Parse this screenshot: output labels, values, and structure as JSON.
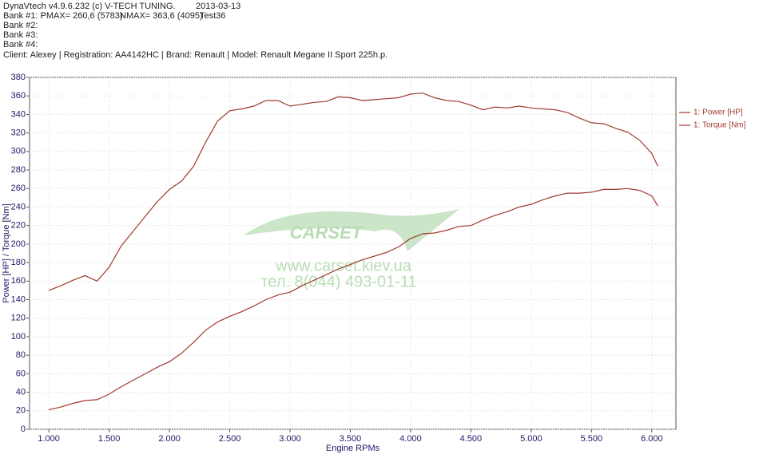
{
  "chart_data": {
    "type": "line",
    "header": [
      {
        "text": "DynaVtech v4.9.6.232 (c) V-TECH TUNING."
      },
      {
        "text": "2013-03-13"
      },
      {
        "text": "Bank #1:  PMAX= 260,6 (5783)"
      },
      {
        "text": "NMAX= 363,6 (4095)"
      },
      {
        "text": "Test36"
      },
      {
        "text": "Bank #2:"
      },
      {
        "text": "Bank #3:"
      },
      {
        "text": "Bank #4:"
      },
      {
        "text": "Client: Alexey | Registration: AA4142HC | Brand: Renault | Model: Renault Megane II Sport 225h.p."
      }
    ],
    "watermark": [
      "CARSET",
      "www.carset.kiev.ua",
      "тел. 8(044) 493-01-11"
    ],
    "xlabel": "Engine RPMs",
    "ylabel": "Power [HP] / Torque [Nm]",
    "x": [
      1000,
      1100,
      1200,
      1300,
      1400,
      1500,
      1600,
      1700,
      1800,
      1900,
      2000,
      2100,
      2200,
      2300,
      2400,
      2500,
      2600,
      2700,
      2800,
      2900,
      3000,
      3100,
      3200,
      3300,
      3400,
      3500,
      3600,
      3700,
      3800,
      3900,
      4000,
      4100,
      4200,
      4300,
      4400,
      4500,
      4600,
      4700,
      4800,
      4900,
      5000,
      5100,
      5200,
      5300,
      5400,
      5500,
      5600,
      5700,
      5800,
      5900,
      6000,
      6050
    ],
    "series": [
      {
        "name": "1: Power [HP]",
        "color": "#a03a2e",
        "values": [
          21,
          24,
          28,
          31,
          32,
          38,
          46,
          53,
          60,
          67,
          73,
          82,
          94,
          107,
          116,
          122,
          127,
          133,
          140,
          145,
          148,
          155,
          161,
          167,
          173,
          178,
          183,
          187,
          191,
          197,
          206,
          211,
          212,
          215,
          219,
          220,
          226,
          231,
          235,
          240,
          243,
          248,
          252,
          255,
          255,
          256,
          259,
          259,
          260,
          258,
          252,
          241
        ]
      },
      {
        "name": "1: Torque [Nm]",
        "color": "#a03a2e",
        "values": [
          150,
          155,
          161,
          166,
          160,
          175,
          198,
          214,
          230,
          246,
          259,
          268,
          284,
          310,
          333,
          344,
          346,
          349,
          355,
          355,
          349,
          351,
          353,
          354,
          359,
          358,
          355,
          356,
          357,
          358,
          362,
          363,
          358,
          355,
          354,
          350,
          345,
          348,
          347,
          349,
          347,
          346,
          345,
          342,
          336,
          331,
          330,
          325,
          321,
          312,
          298,
          284
        ]
      }
    ],
    "xlim": [
      840,
      6200
    ],
    "ylim": [
      0,
      380
    ],
    "xticks": [
      {
        "value": 1000,
        "label": "1.000"
      },
      {
        "value": 1500,
        "label": "1.500"
      },
      {
        "value": 2000,
        "label": "2.000"
      },
      {
        "value": 2500,
        "label": "2.500"
      },
      {
        "value": 3000,
        "label": "3.000"
      },
      {
        "value": 3500,
        "label": "3.500"
      },
      {
        "value": 4000,
        "label": "4.000"
      },
      {
        "value": 4500,
        "label": "4.500"
      },
      {
        "value": 5000,
        "label": "5.000"
      },
      {
        "value": 5500,
        "label": "5.500"
      },
      {
        "value": 6000,
        "label": "6.000"
      }
    ],
    "yticks": [
      0,
      20,
      40,
      60,
      80,
      100,
      120,
      140,
      160,
      180,
      200,
      220,
      240,
      260,
      280,
      300,
      320,
      340,
      360,
      380
    ],
    "grid": true,
    "legend": "right"
  }
}
